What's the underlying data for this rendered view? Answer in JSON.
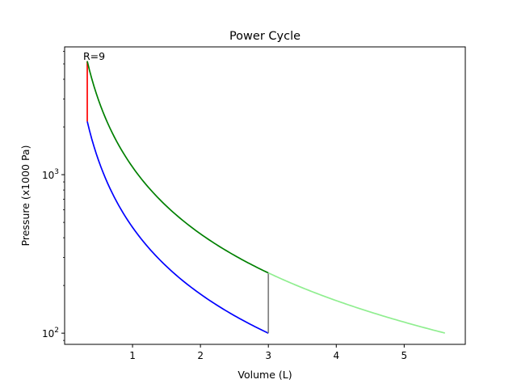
{
  "chart_data": {
    "type": "line",
    "title": "Power Cycle",
    "xlabel": "Volume (L)",
    "ylabel": "Pressure (x1000 Pa)",
    "annotation": "R=9",
    "xlim": [
      0.0,
      5.9
    ],
    "ylim": [
      85,
      6400
    ],
    "yscale": "log",
    "x_ticks": [
      1,
      2,
      3,
      4,
      5
    ],
    "y_ticks": [
      {
        "value": 100,
        "base": "10",
        "exp": "2"
      },
      {
        "value": 1000,
        "base": "10",
        "exp": "3"
      }
    ],
    "grid": false,
    "series": [
      {
        "color": "#0000ff",
        "curve": "power",
        "gamma": 1.4,
        "x": [
          0.3333,
          3.0
        ],
        "y": [
          2167,
          100
        ]
      },
      {
        "color": "#ff0000",
        "curve": "segment",
        "x": [
          0.3333,
          0.3333
        ],
        "y": [
          2167,
          5200
        ]
      },
      {
        "color": "#008000",
        "curve": "power",
        "gamma": 1.4,
        "x": [
          0.3333,
          3.0
        ],
        "y": [
          5200,
          240
        ]
      },
      {
        "color": "#808080",
        "curve": "segment",
        "x": [
          3.0,
          3.0
        ],
        "y": [
          240,
          100
        ]
      },
      {
        "color": "#90ee90",
        "curve": "power",
        "gamma": 1.4,
        "x": [
          3.0,
          5.6
        ],
        "y": [
          240,
          100
        ]
      }
    ]
  }
}
